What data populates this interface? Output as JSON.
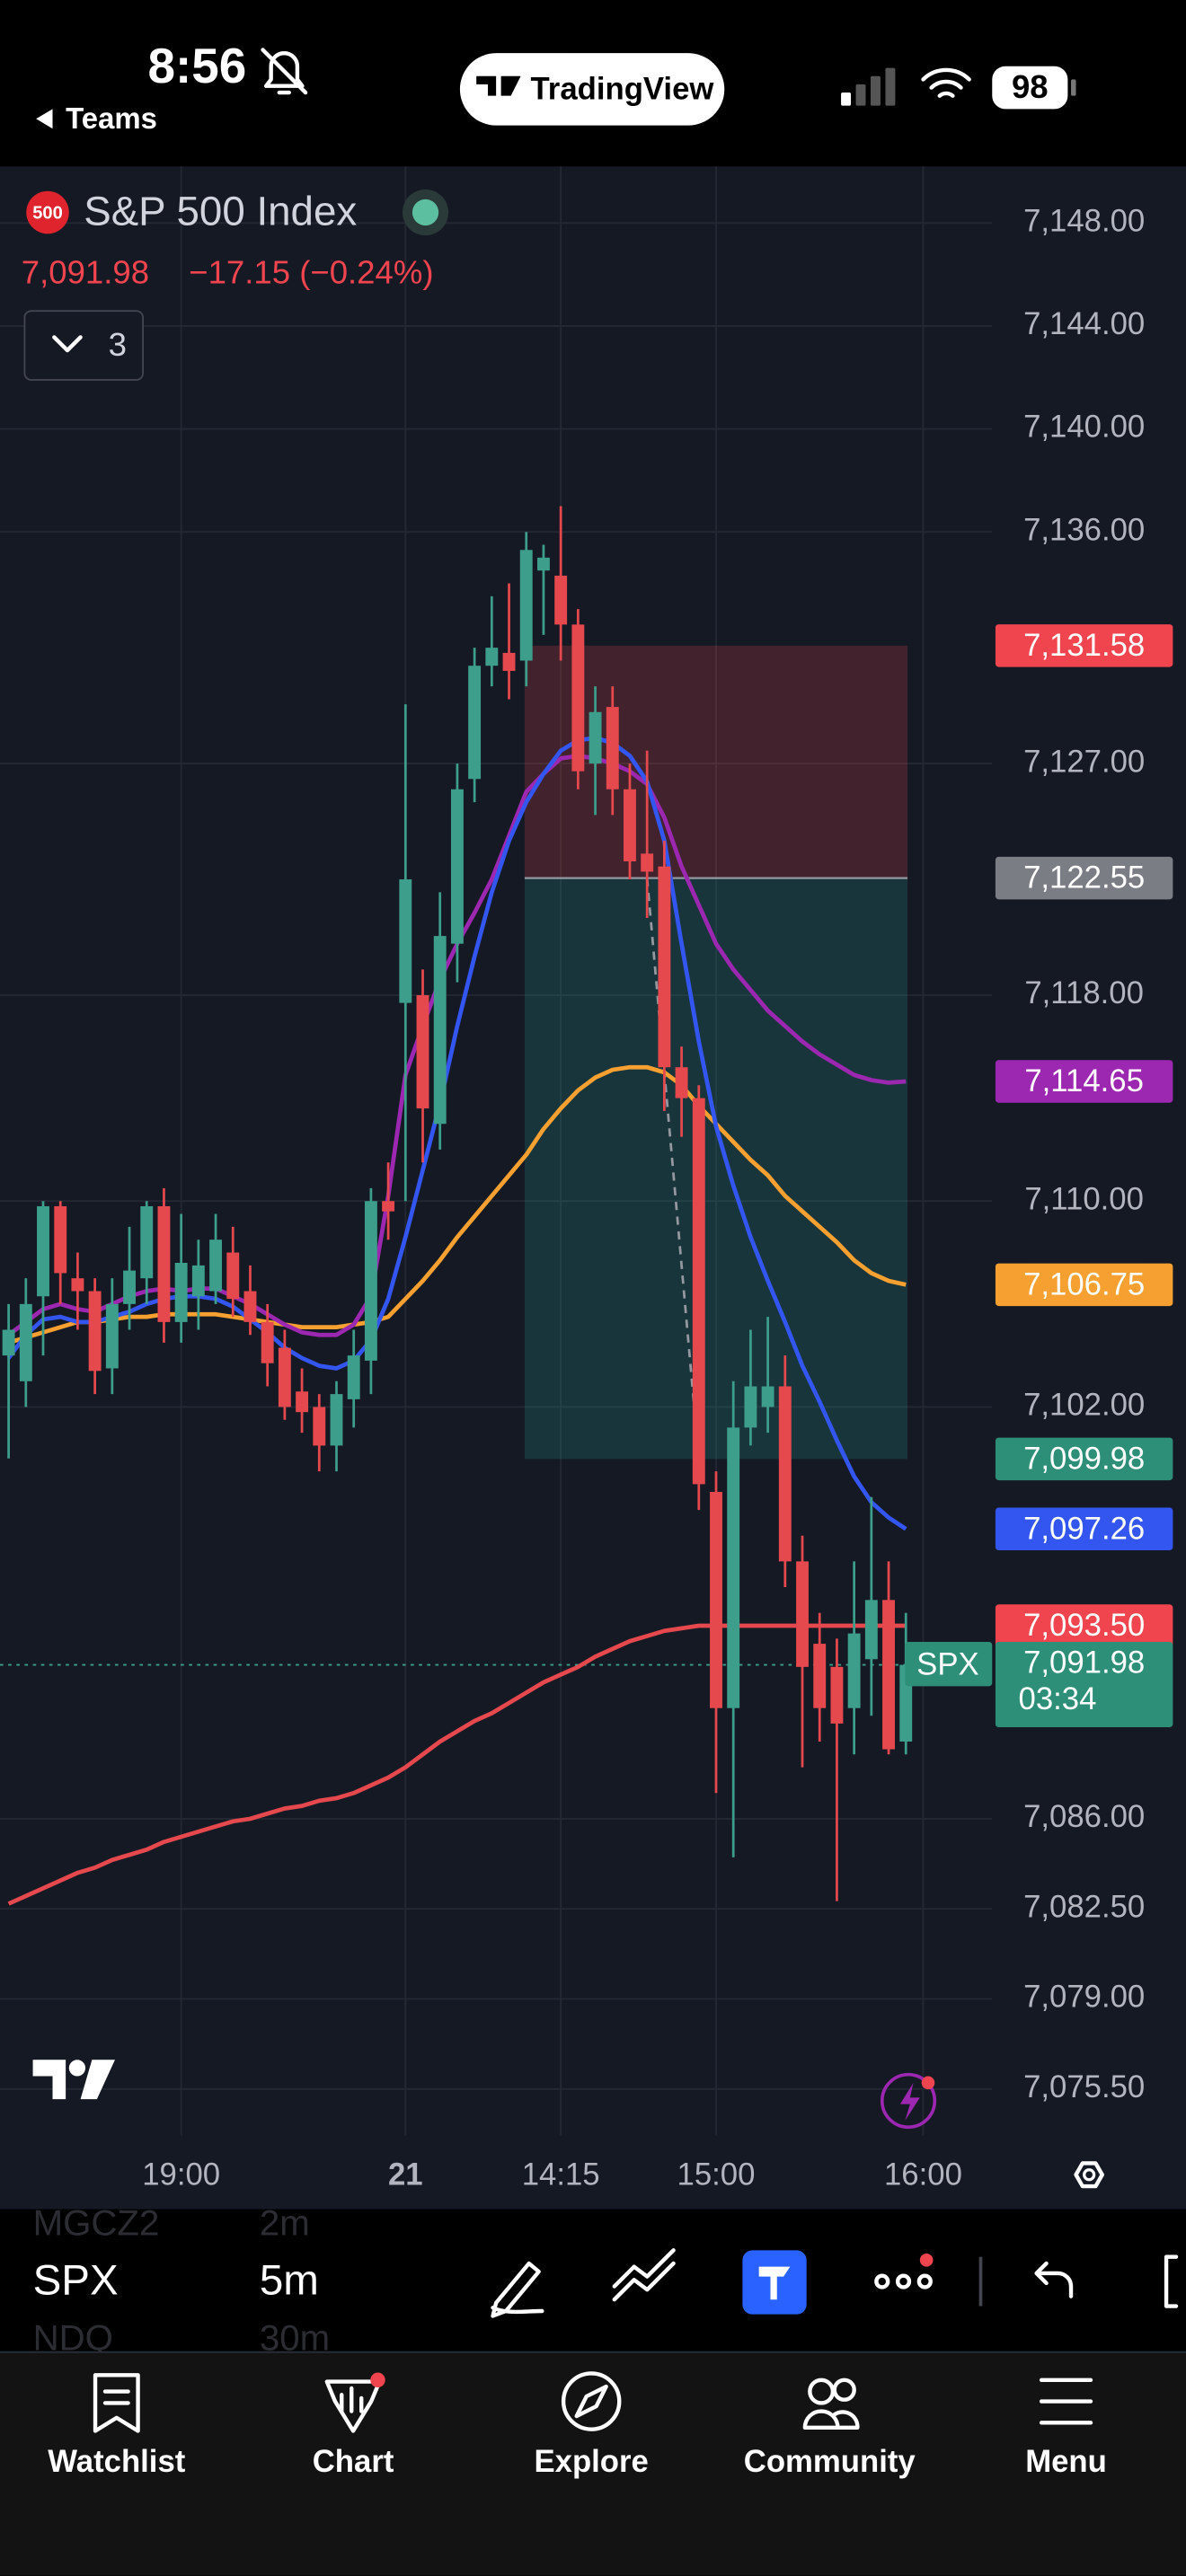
{
  "status_bar": {
    "time": "8:56",
    "back": "Teams",
    "app": "TradingView",
    "battery": "98"
  },
  "header": {
    "badge": "500",
    "title": "S&P 500 Index",
    "price": "7,091.98",
    "change": "−17.15 (−0.24%)",
    "collapsed_count": "3"
  },
  "chart_data": {
    "type": "candlestick",
    "up_color": "#3d9e8c",
    "down_color": "#e5484d",
    "open": [
      7104,
      7103,
      7106.3,
      7109.8,
      7107,
      7106.5,
      7103.5,
      7106,
      7107,
      7109.8,
      7105.3,
      7106.3,
      7106.5,
      7108,
      7106.5,
      7105.3,
      7104.3,
      7102.6,
      7102,
      7100.5,
      7102.3,
      7103.8,
      7110,
      7117.7,
      7118,
      7113,
      7120,
      7126.4,
      7130.8,
      7131.3,
      7131,
      7134.5,
      7134.3,
      7132.4,
      7127,
      7129.2,
      7126,
      7123.5,
      7123,
      7115.2,
      7114,
      7098.7,
      7090.3,
      7101.2,
      7102,
      7102.8,
      7096,
      7092.8,
      7091.9,
      7090.3,
      7092.2,
      7094.5,
      7089
    ],
    "high": [
      7106,
      7107,
      7110,
      7110,
      7108,
      7107,
      7107,
      7109,
      7110,
      7110.5,
      7109.5,
      7108.5,
      7109.5,
      7109,
      7107.5,
      7106,
      7105,
      7103.5,
      7102.5,
      7103,
      7105,
      7110.5,
      7111.5,
      7129.3,
      7119,
      7122,
      7127,
      7131.5,
      7133.5,
      7134,
      7136,
      7135.5,
      7137,
      7133,
      7130,
      7130,
      7127,
      7127.5,
      7124,
      7116,
      7114.5,
      7099.5,
      7103,
      7105,
      7105.5,
      7104,
      7097,
      7094,
      7093,
      7096,
      7098.5,
      7096,
      7094
    ],
    "low": [
      7100,
      7102,
      7104,
      7106,
      7105,
      7102.5,
      7102.5,
      7105,
      7106,
      7104.5,
      7104.5,
      7105,
      7106,
      7105.5,
      7104.8,
      7102.8,
      7101.5,
      7101,
      7099.5,
      7099.5,
      7101.2,
      7102.5,
      7108.5,
      7110,
      7111.5,
      7112,
      7118.5,
      7125.5,
      7130,
      7129.5,
      7130,
      7132,
      7131,
      7126,
      7125,
      7125,
      7122.5,
      7121,
      7113.5,
      7112.5,
      7098,
      7087,
      7084.5,
      7100.5,
      7101,
      7095,
      7088,
      7089,
      7082.8,
      7088.5,
      7090,
      7088.5,
      7088.5
    ],
    "close": [
      7105,
      7106,
      7109.8,
      7107.2,
      7106.5,
      7103.4,
      7106,
      7107.3,
      7109.8,
      7105.3,
      7107.6,
      7107.5,
      7108.5,
      7106.2,
      7105.3,
      7103.7,
      7102,
      7101.8,
      7100.5,
      7102.5,
      7104,
      7110,
      7109.6,
      7122.5,
      7113.6,
      7120.3,
      7126,
      7130.8,
      7131.5,
      7130.6,
      7135.3,
      7135,
      7132.4,
      7126.7,
      7129,
      7126,
      7123.2,
      7122.8,
      7115.2,
      7114,
      7099,
      7090.3,
      7101.2,
      7102.8,
      7102.8,
      7096,
      7091.9,
      7090.3,
      7089.7,
      7093.2,
      7094.5,
      7088.7,
      7091.98
    ],
    "lines": [
      {
        "color": "#e5484d",
        "values": [
          7082.7,
          7083.0,
          7083.3,
          7083.6,
          7083.9,
          7084.1,
          7084.4,
          7084.6,
          7084.8,
          7085.1,
          7085.3,
          7085.5,
          7085.7,
          7085.9,
          7086.0,
          7086.2,
          7086.4,
          7086.5,
          7086.7,
          7086.8,
          7087.0,
          7087.3,
          7087.6,
          7088.0,
          7088.5,
          7089.0,
          7089.4,
          7089.8,
          7090.1,
          7090.5,
          7090.9,
          7091.3,
          7091.6,
          7091.9,
          7092.3,
          7092.6,
          7092.9,
          7093.1,
          7093.3,
          7093.4,
          7093.5,
          7093.5,
          7093.5,
          7093.5,
          7093.5,
          7093.5,
          7093.5,
          7093.5,
          7093.5,
          7093.5,
          7093.5,
          7093.5,
          7093.5
        ]
      },
      {
        "color": "#f5a030",
        "values": [
          7104.5,
          7104.7,
          7104.9,
          7105.1,
          7105.3,
          7105.3,
          7105.4,
          7105.5,
          7105.5,
          7105.6,
          7105.6,
          7105.6,
          7105.6,
          7105.5,
          7105.4,
          7105.3,
          7105.2,
          7105.1,
          7105.1,
          7105.1,
          7105.2,
          7105.3,
          7105.5,
          7106.2,
          7106.9,
          7107.7,
          7108.6,
          7109.4,
          7110.2,
          7111.0,
          7111.8,
          7112.8,
          7113.6,
          7114.3,
          7114.8,
          7115.1,
          7115.2,
          7115.2,
          7115.0,
          7114.5,
          7113.7,
          7113.0,
          7112.3,
          7111.6,
          7111.0,
          7110.2,
          7109.6,
          7109.0,
          7108.4,
          7107.7,
          7107.2,
          7106.9,
          7106.75
        ]
      },
      {
        "color": "#9c27b0",
        "values": [
          7104.8,
          7105.3,
          7105.8,
          7106.0,
          7105.8,
          7105.7,
          7106.0,
          7106.3,
          7106.5,
          7106.6,
          7106.5,
          7106.6,
          7106.6,
          7106.3,
          7106.0,
          7105.6,
          7105.2,
          7104.9,
          7104.8,
          7104.8,
          7105.2,
          7106.3,
          7110.2,
          7114.9,
          7116.8,
          7118.6,
          7120.0,
          7121.2,
          7122.5,
          7124.2,
          7125.9,
          7126.6,
          7127.2,
          7127.3,
          7127.2,
          7127.0,
          7126.7,
          7126.2,
          7124.9,
          7123.0,
          7121.5,
          7120.0,
          7119.0,
          7118.2,
          7117.4,
          7116.8,
          7116.2,
          7115.7,
          7115.3,
          7114.9,
          7114.7,
          7114.6,
          7114.65
        ]
      },
      {
        "color": "#3456f0",
        "values": [
          7103.9,
          7104.8,
          7105.4,
          7105.5,
          7105.3,
          7105.3,
          7105.5,
          7105.7,
          7106.0,
          7106.2,
          7106.3,
          7106.3,
          7106.2,
          7105.9,
          7105.4,
          7104.9,
          7104.3,
          7103.9,
          7103.6,
          7103.5,
          7103.8,
          7104.6,
          7106.2,
          7108.6,
          7111.2,
          7113.8,
          7116.8,
          7119.5,
          7122.0,
          7124.0,
          7125.5,
          7126.6,
          7127.5,
          7127.9,
          7128.0,
          7127.8,
          7127.3,
          7126.3,
          7124.0,
          7120.0,
          7116.2,
          7112.9,
          7110.6,
          7108.6,
          7106.9,
          7105.3,
          7103.6,
          7102.2,
          7100.7,
          7099.3,
          7098.3,
          7097.7,
          7097.26
        ]
      }
    ],
    "position": {
      "start": 30,
      "end": 52
    },
    "price_labels": [
      {
        "value": 7131.58,
        "label": "7,131.58",
        "color": "#f0444f"
      },
      {
        "value": 7122.55,
        "label": "7,122.55",
        "color": "#7b7d85"
      },
      {
        "value": 7114.65,
        "label": "7,114.65",
        "color": "#9c27b0"
      },
      {
        "value": 7106.75,
        "label": "7,106.75",
        "color": "#f5a030"
      },
      {
        "value": 7099.98,
        "label": "7,099.98",
        "color": "#2e8f78"
      },
      {
        "value": 7097.26,
        "label": "7,097.26",
        "color": "#3456f0"
      },
      {
        "value": 7093.5,
        "label": "7,093.50",
        "color": "#f0444f"
      }
    ],
    "last_price": {
      "value": 7091.98,
      "label": "7,091.98",
      "symbol": "SPX",
      "countdown": "03:34",
      "color": "#2e8f78"
    },
    "xlim": [
      -0.5,
      57
    ],
    "xticks": [
      {
        "value": 10,
        "label": "19:00"
      },
      {
        "value": 23,
        "label": "21"
      },
      {
        "value": 32,
        "label": "14:15"
      },
      {
        "value": 41,
        "label": "15:00"
      },
      {
        "value": 53,
        "label": "16:00"
      }
    ],
    "ylim": [
      7073.7,
      7150.2
    ],
    "yticks": [
      {
        "value": 7148,
        "label": "7,148.00"
      },
      {
        "value": 7144,
        "label": "7,144.00"
      },
      {
        "value": 7140,
        "label": "7,140.00"
      },
      {
        "value": 7136,
        "label": "7,136.00"
      },
      {
        "value": 7127,
        "label": "7,127.00"
      },
      {
        "value": 7118,
        "label": "7,118.00"
      },
      {
        "value": 7110,
        "label": "7,110.00"
      },
      {
        "value": 7102,
        "label": "7,102.00"
      },
      {
        "value": 7086,
        "label": "7,086.00"
      },
      {
        "value": 7082.5,
        "label": "7,082.50"
      },
      {
        "value": 7079,
        "label": "7,079.00"
      },
      {
        "value": 7075.5,
        "label": "7,075.50"
      }
    ],
    "grid": true
  },
  "toolbar": {
    "symbol": "SPX",
    "interval": "5m",
    "other_symbols": [
      "MGCZ2",
      "NDQ"
    ],
    "other_intervals": [
      "2m",
      "30m"
    ]
  },
  "tabs": [
    "Watchlist",
    "Chart",
    "Explore",
    "Community",
    "Menu"
  ]
}
